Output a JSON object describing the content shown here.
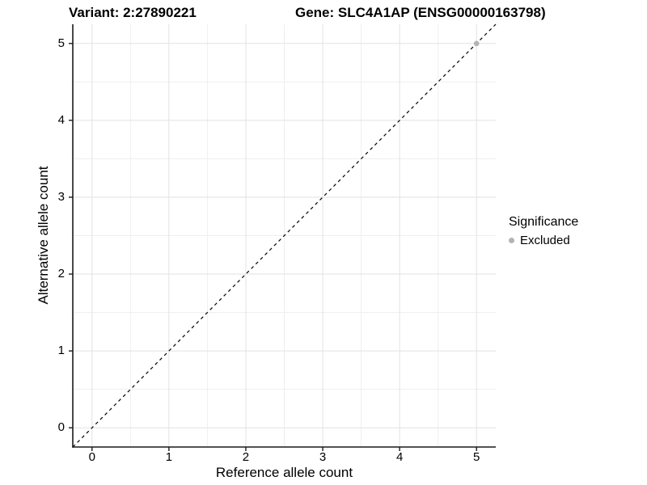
{
  "chart_data": {
    "type": "scatter",
    "titles": {
      "left": "Variant: 2:27890221",
      "right": "Gene: SLC4A1AP (ENSG00000163798)"
    },
    "xlabel": "Reference allele count",
    "ylabel": "Alternative allele count",
    "xlim": [
      -0.25,
      5.25
    ],
    "ylim": [
      -0.25,
      5.25
    ],
    "x_ticks": [
      0,
      1,
      2,
      3,
      4,
      5
    ],
    "y_ticks": [
      0,
      1,
      2,
      3,
      4,
      5
    ],
    "minor_grid_step": 0.5,
    "grid": "on",
    "legend_position": "right",
    "reference_line": {
      "type": "identity",
      "style": "dashed",
      "color": "#000000",
      "from": [
        -0.25,
        -0.25
      ],
      "to": [
        5.25,
        5.25
      ]
    },
    "series": [
      {
        "name": "Excluded",
        "marker": "circle",
        "color": "#b3b3b3",
        "points": [
          {
            "x": 5,
            "y": 5
          }
        ]
      }
    ],
    "legend": {
      "title": "Significance",
      "items": [
        {
          "label": "Excluded",
          "color": "#b3b3b3",
          "marker": "circle-icon"
        }
      ]
    },
    "style": {
      "grid_major_color": "#e2e2e2",
      "grid_minor_color": "#efefef",
      "axis_line_color": "#1a1a1a",
      "background": "#ffffff",
      "text_color": "#000000"
    }
  }
}
